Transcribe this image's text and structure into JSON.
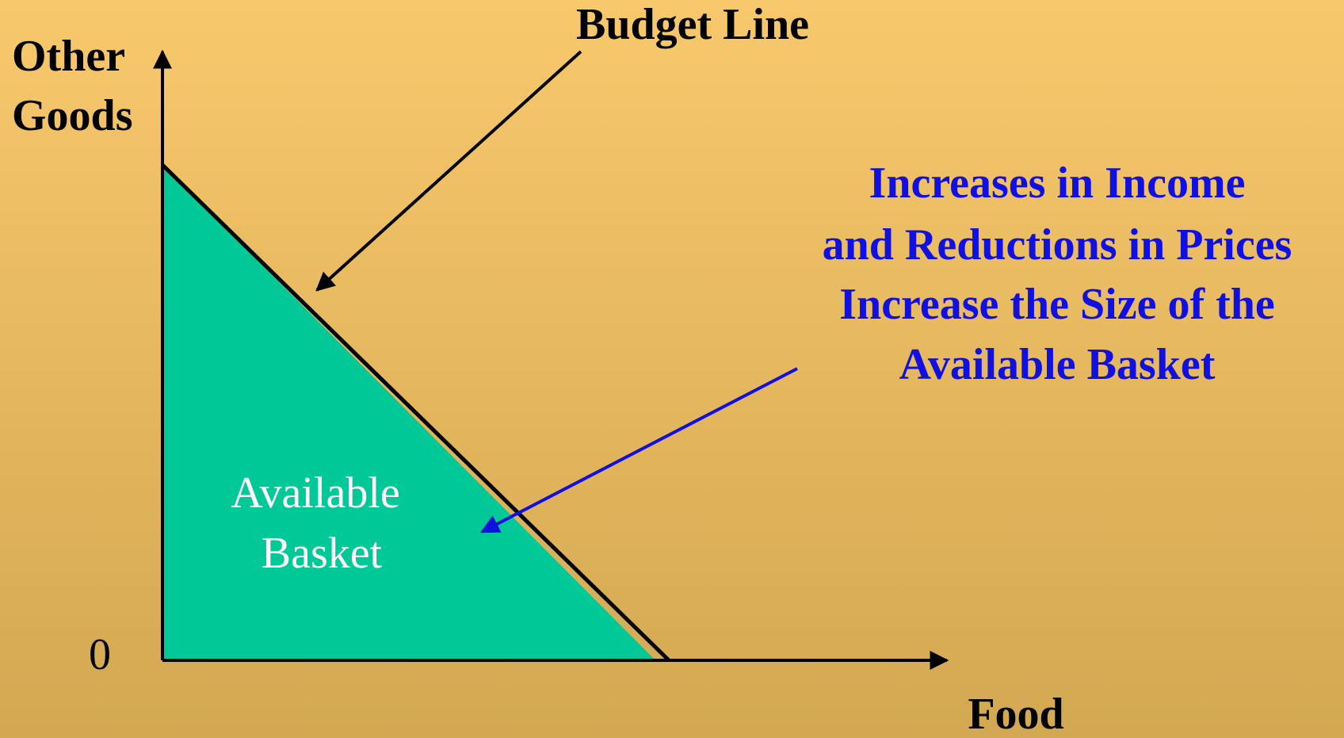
{
  "axes": {
    "y_label": [
      "Other",
      "Goods"
    ],
    "x_label": "Food",
    "origin": "0"
  },
  "annotations": {
    "budget_line": "Budget Line",
    "region": [
      "Available",
      "Basket"
    ],
    "note": [
      "Increases in Income",
      "and Reductions in Prices",
      "Increase the Size of the",
      "Available Basket"
    ]
  }
}
